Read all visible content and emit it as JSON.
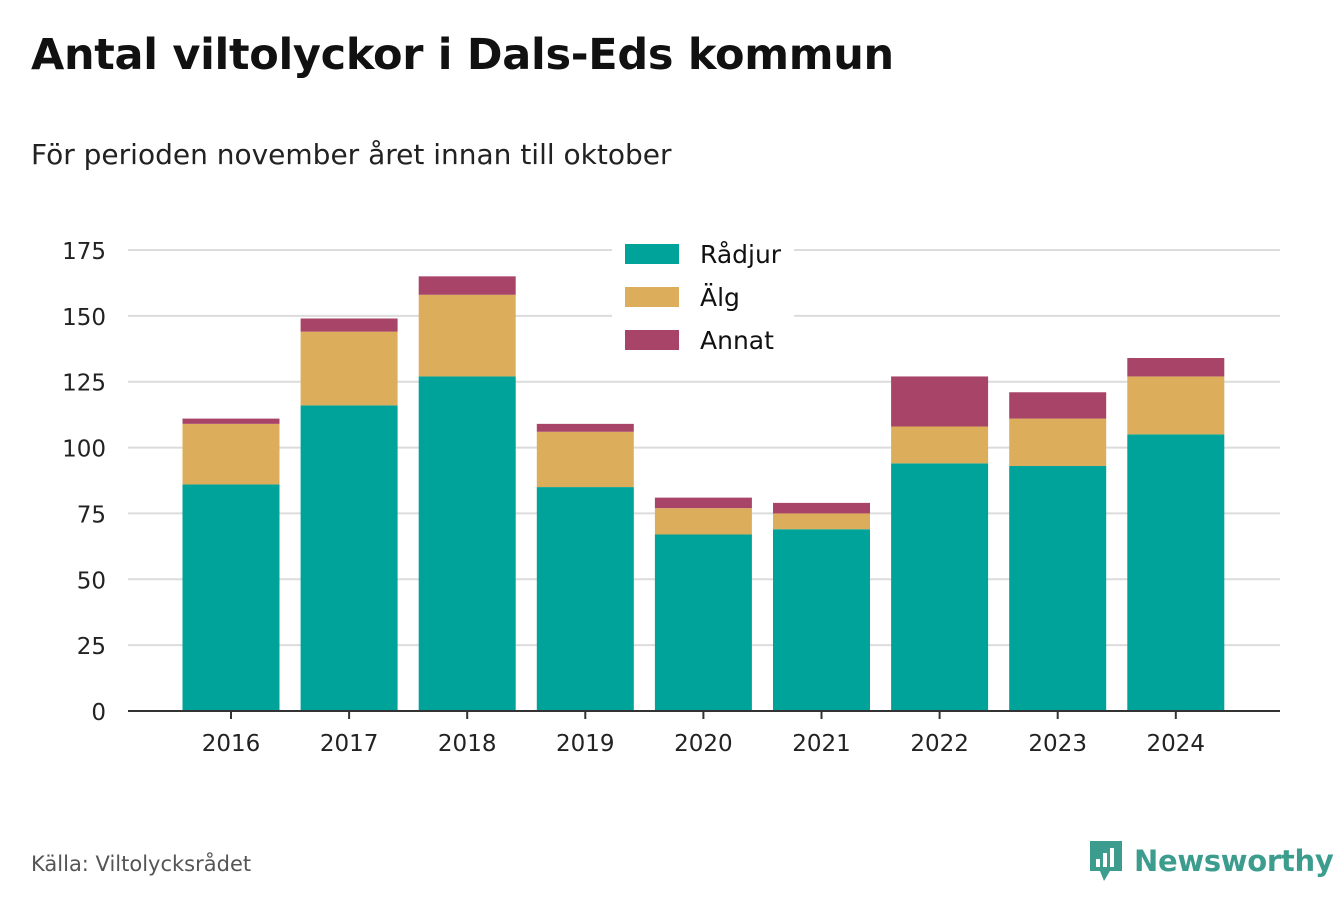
{
  "title": "Antal viltolyckor i Dals-Eds kommun",
  "subtitle": "För perioden november året innan till oktober",
  "source": "Källa: Viltolycksrådet",
  "brand": {
    "name": "Newsworthy",
    "color": "#3c9d8e"
  },
  "chart_data": {
    "type": "bar",
    "stacked": true,
    "categories": [
      "2016",
      "2017",
      "2018",
      "2019",
      "2020",
      "2021",
      "2022",
      "2023",
      "2024"
    ],
    "series": [
      {
        "name": "Rådjur",
        "color": "#00a39a",
        "values": [
          86,
          116,
          127,
          85,
          67,
          69,
          94,
          93,
          105
        ]
      },
      {
        "name": "Älg",
        "color": "#dcae5b",
        "values": [
          23,
          28,
          31,
          21,
          10,
          6,
          14,
          18,
          22
        ]
      },
      {
        "name": "Annat",
        "color": "#a84468",
        "values": [
          2,
          5,
          7,
          3,
          4,
          4,
          19,
          10,
          7
        ]
      }
    ],
    "ylim": [
      0,
      175
    ],
    "yticks": [
      0,
      25,
      50,
      75,
      100,
      125,
      150,
      175
    ],
    "grid": true,
    "legend_position": "top-center",
    "xlabel": "",
    "ylabel": ""
  }
}
